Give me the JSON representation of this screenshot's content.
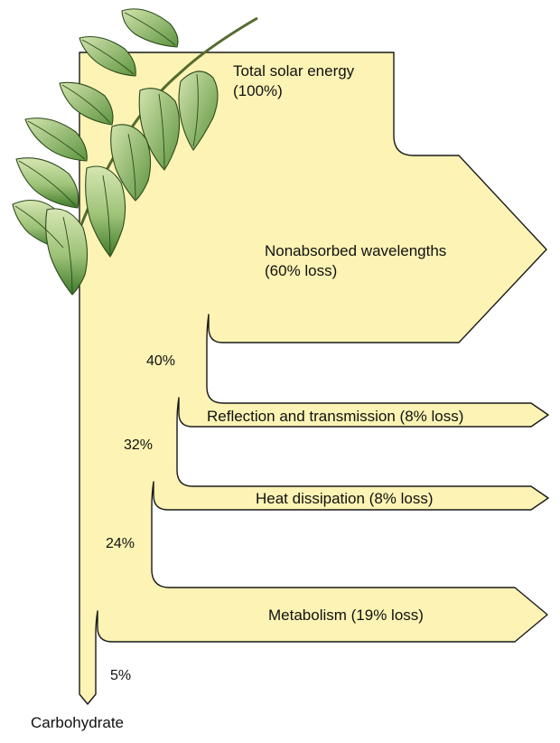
{
  "flows": [
    {
      "id": "total",
      "text": "Total solar energy",
      "subtext": "(100%)"
    },
    {
      "id": "nonabsorbed",
      "text": "Nonabsorbed wavelengths",
      "subtext": "(60% loss)"
    },
    {
      "id": "reflection",
      "text": "Reflection and transmission (8% loss)"
    },
    {
      "id": "heat",
      "text": "Heat dissipation (8% loss)"
    },
    {
      "id": "metabolism",
      "text": "Metabolism (19% loss)"
    }
  ],
  "remaining": [
    "40%",
    "32%",
    "24%",
    "5%"
  ],
  "output": "Carbohydrate",
  "colors": {
    "fill": "#fcf3b4",
    "stroke": "#1a1a1a",
    "leaf_light": "#c9dca0",
    "leaf_dark": "#3f7a2a",
    "vein": "#2d4a1c"
  },
  "decoration": "leafy-branch-illustration"
}
